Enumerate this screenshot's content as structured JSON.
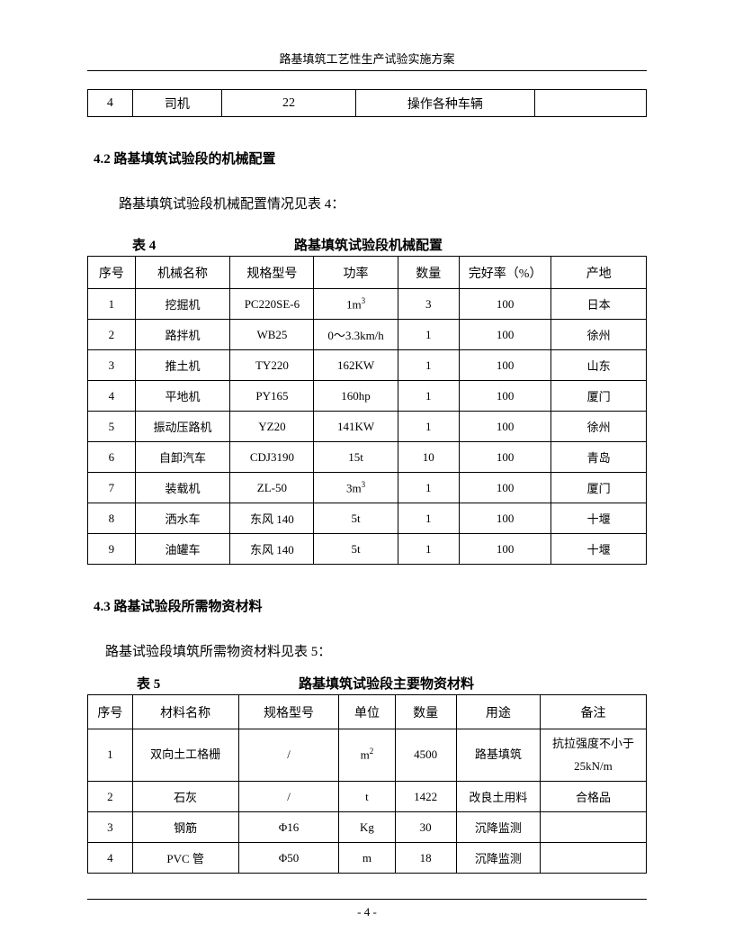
{
  "header": {
    "title": "路基填筑工艺性生产试验实施方案"
  },
  "topTable": {
    "cols": [
      "4",
      "司机",
      "22",
      "操作各种车辆",
      ""
    ],
    "widths": [
      "8%",
      "16%",
      "24%",
      "32%",
      "20%"
    ]
  },
  "section42": {
    "heading": "4.2 路基填筑试验段的机械配置",
    "intro": "路基填筑试验段机械配置情况见表 4：",
    "captionLabel": "表 4",
    "captionTitle": "路基填筑试验段机械配置",
    "headers": [
      "序号",
      "机械名称",
      "规格型号",
      "功率",
      "数量",
      "完好率（%）",
      "产地"
    ],
    "colWidths": [
      "8.5%",
      "17%",
      "15%",
      "15%",
      "11%",
      "16.5%",
      "17%"
    ],
    "rows": [
      [
        "1",
        "挖掘机",
        "PC220SE-6",
        "1m³",
        "3",
        "100",
        "日本"
      ],
      [
        "2",
        "路拌机",
        "WB25",
        "0～3.3km/h",
        "1",
        "100",
        "徐州"
      ],
      [
        "3",
        "推土机",
        "TY220",
        "162KW",
        "1",
        "100",
        "山东"
      ],
      [
        "4",
        "平地机",
        "PY165",
        "160hp",
        "1",
        "100",
        "厦门"
      ],
      [
        "5",
        "振动压路机",
        "YZ20",
        "141KW",
        "1",
        "100",
        "徐州"
      ],
      [
        "6",
        "自卸汽车",
        "CDJ3190",
        "15t",
        "10",
        "100",
        "青岛"
      ],
      [
        "7",
        "装载机",
        "ZL-50",
        "3m³",
        "1",
        "100",
        "厦门"
      ],
      [
        "8",
        "洒水车",
        "东风 140",
        "5t",
        "1",
        "100",
        "十堰"
      ],
      [
        "9",
        "油罐车",
        "东风 140",
        "5t",
        "1",
        "100",
        "十堰"
      ]
    ]
  },
  "section43": {
    "heading": "4.3 路基试验段所需物资材料",
    "intro": "路基试验段填筑所需物资材料见表 5：",
    "captionLabel": "表 5",
    "captionTitle": "路基填筑试验段主要物资材料",
    "headers": [
      "序号",
      "材料名称",
      "规格型号",
      "单位",
      "数量",
      "用途",
      "备注"
    ],
    "colWidths": [
      "8%",
      "19%",
      "18%",
      "10%",
      "11%",
      "15%",
      "19%"
    ],
    "rows": [
      {
        "cells": [
          "1",
          "双向土工格栅",
          "/",
          "m²",
          "4500",
          "路基填筑",
          "抗拉强度不小于25kN/m"
        ],
        "tall": true
      },
      {
        "cells": [
          "2",
          "石灰",
          "/",
          "t",
          "1422",
          "改良土用料",
          "合格品"
        ],
        "tall": false
      },
      {
        "cells": [
          "3",
          "钢筋",
          "Φ16",
          "Kg",
          "30",
          "沉降监测",
          ""
        ],
        "tall": false
      },
      {
        "cells": [
          "4",
          "PVC 管",
          "Φ50",
          "m",
          "18",
          "沉降监测",
          ""
        ],
        "tall": false
      }
    ]
  },
  "footer": {
    "pageNum": "- 4 -"
  },
  "colors": {
    "text": "#000000",
    "background": "#ffffff",
    "border": "#000000"
  },
  "fonts": {
    "body": "SimSun, 宋体, serif",
    "headerSize": 13,
    "headingSize": 15,
    "tableSize": 14
  }
}
